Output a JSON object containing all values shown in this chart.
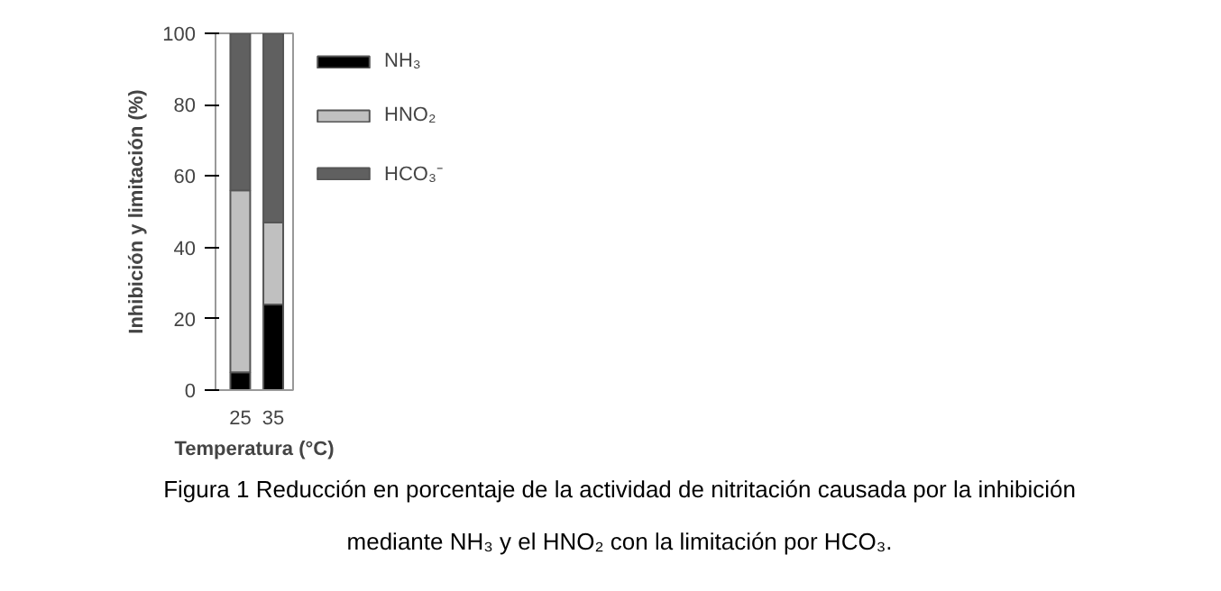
{
  "chart_data": {
    "type": "bar",
    "stacked": true,
    "categories": [
      "25",
      "35"
    ],
    "xlabel": "Temperatura (°C)",
    "ylabel": "Inhibición y limitación (%)",
    "ylim": [
      0,
      100
    ],
    "yticks": [
      0,
      20,
      40,
      60,
      80,
      100
    ],
    "legend": "right",
    "grid": false,
    "series": [
      {
        "name": "NH₃",
        "color": "#000000",
        "values": [
          5,
          24
        ]
      },
      {
        "name": "HNO₂",
        "color": "#c0c0c0",
        "values": [
          51,
          23
        ]
      },
      {
        "name": "HCO₃⁻",
        "color": "#606060",
        "values": [
          44,
          53
        ]
      }
    ],
    "annotations": [
      "Figura 1 Reducción en porcentaje de la actividad de nitritación causada por la inhibición",
      "mediante NH₃ y el HNO₂ con la limitación por HCO₃."
    ]
  }
}
